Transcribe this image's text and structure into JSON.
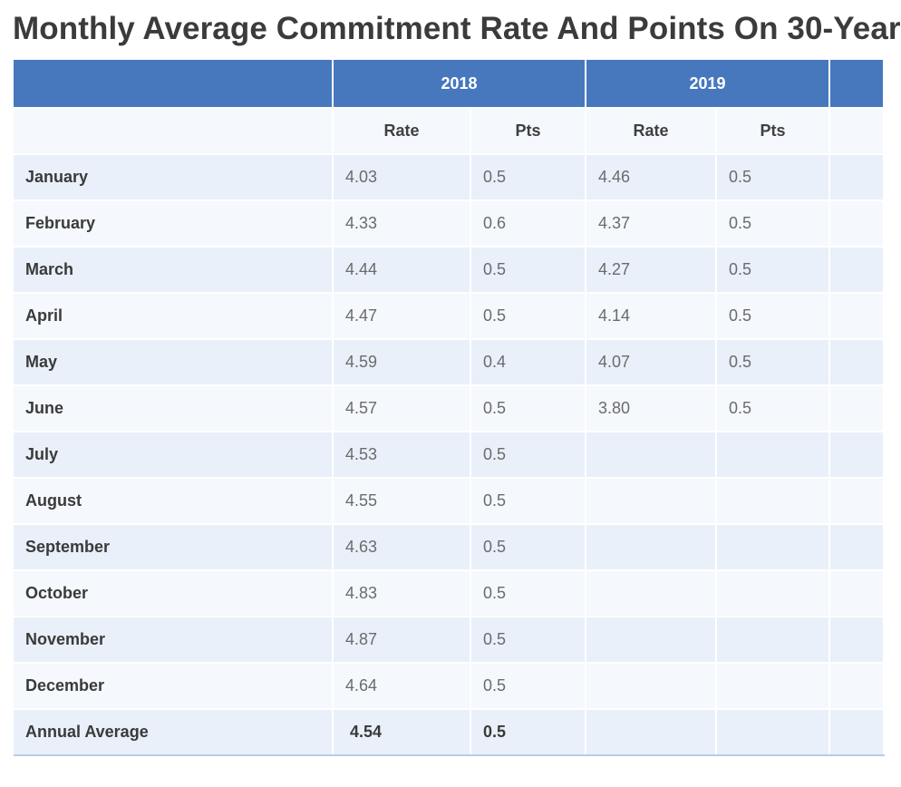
{
  "title": "Monthly Average Commitment Rate And Points On 30-Year",
  "years": [
    "2018",
    "2019",
    ""
  ],
  "subheaders": {
    "rate": "Rate",
    "pts": "Pts"
  },
  "rows": [
    {
      "month": "January",
      "r2018": "4.03",
      "p2018": "0.5",
      "r2019": "4.46",
      "p2019": "0.5"
    },
    {
      "month": "February",
      "r2018": "4.33",
      "p2018": "0.6",
      "r2019": "4.37",
      "p2019": "0.5"
    },
    {
      "month": "March",
      "r2018": "4.44",
      "p2018": "0.5",
      "r2019": "4.27",
      "p2019": "0.5"
    },
    {
      "month": "April",
      "r2018": "4.47",
      "p2018": "0.5",
      "r2019": "4.14",
      "p2019": "0.5"
    },
    {
      "month": "May",
      "r2018": "4.59",
      "p2018": "0.4",
      "r2019": "4.07",
      "p2019": "0.5"
    },
    {
      "month": "June",
      "r2018": "4.57",
      "p2018": "0.5",
      "r2019": "3.80",
      "p2019": "0.5"
    },
    {
      "month": "July",
      "r2018": "4.53",
      "p2018": "0.5",
      "r2019": "",
      "p2019": ""
    },
    {
      "month": "August",
      "r2018": "4.55",
      "p2018": "0.5",
      "r2019": "",
      "p2019": ""
    },
    {
      "month": "September",
      "r2018": "4.63",
      "p2018": "0.5",
      "r2019": "",
      "p2019": ""
    },
    {
      "month": "October",
      "r2018": "4.83",
      "p2018": "0.5",
      "r2019": "",
      "p2019": ""
    },
    {
      "month": "November",
      "r2018": "4.87",
      "p2018": "0.5",
      "r2019": "",
      "p2019": ""
    },
    {
      "month": "December",
      "r2018": "4.64",
      "p2018": "0.5",
      "r2019": "",
      "p2019": ""
    }
  ],
  "annual_average": {
    "label": "Annual Average",
    "r2018": "4.54",
    "p2018": "0.5",
    "r2019": "",
    "p2019": ""
  },
  "colors": {
    "header_blue": "#4778be",
    "row_light": "#e9f0f9",
    "row_lighter": "#f5f8fc"
  }
}
